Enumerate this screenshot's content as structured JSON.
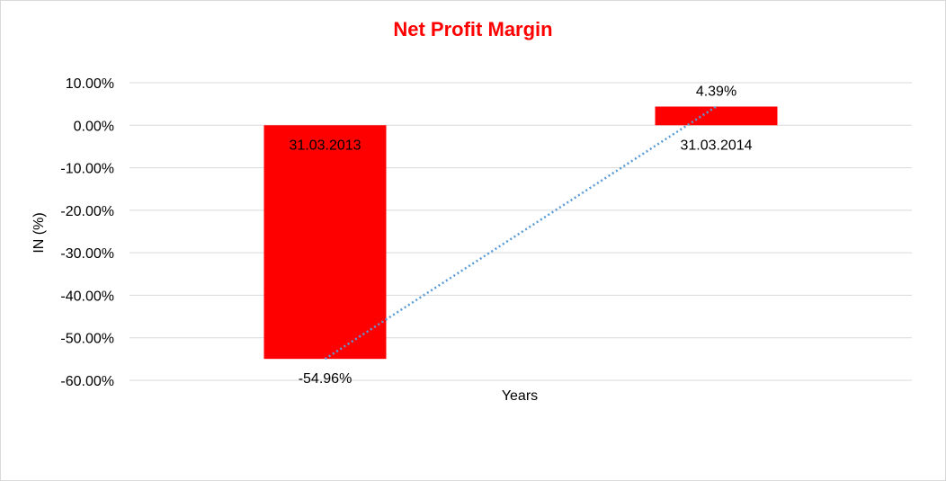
{
  "chart_data": {
    "type": "bar",
    "title": "Net Profit Margin",
    "xlabel": "Years",
    "ylabel": "IN (%)",
    "categories": [
      "31.03.2013",
      "31.03.2014"
    ],
    "values": [
      -54.96,
      4.39
    ],
    "data_labels": [
      "-54.96%",
      "4.39%"
    ],
    "ylim": [
      -60,
      10
    ],
    "yticks": [
      10,
      0,
      -10,
      -20,
      -30,
      -40,
      -50,
      -60
    ],
    "ytick_labels": [
      "10.00%",
      "0.00%",
      "-10.00%",
      "-20.00%",
      "-30.00%",
      "-40.00%",
      "-50.00%",
      "-60.00%"
    ],
    "grid": true,
    "legend": "none",
    "trendline": {
      "type": "linear",
      "style": "dotted"
    },
    "colors": {
      "bar": "#ff0000",
      "title": "#ff0000",
      "grid": "#d9d9d9",
      "trendline": "#5b9bd5"
    }
  }
}
